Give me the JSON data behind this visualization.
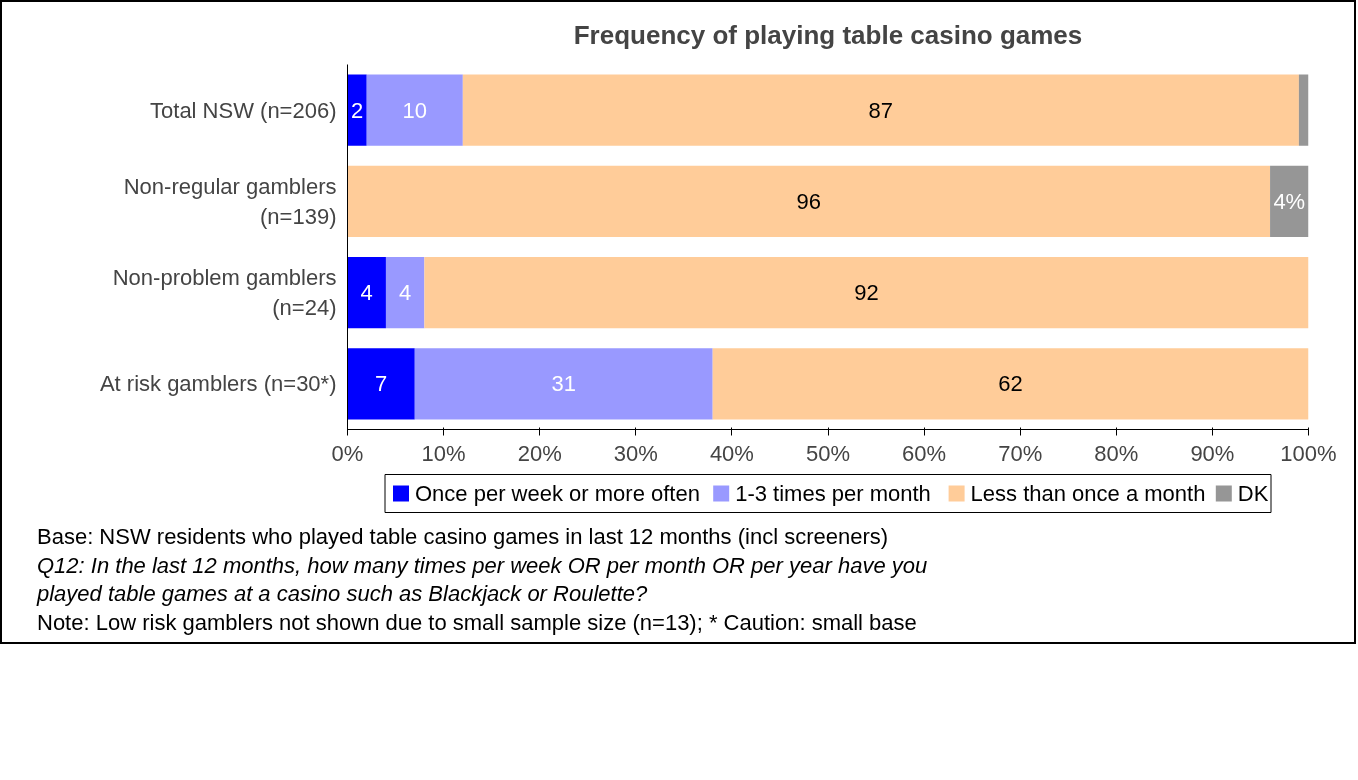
{
  "chart_data": {
    "type": "bar",
    "orientation": "horizontal",
    "stacked": true,
    "title": "Frequency of playing table casino games",
    "categories": [
      "Total NSW (n=206)",
      "Non-regular gamblers (n=139)",
      "Non-problem gamblers (n=24)",
      "At risk gamblers (n=30*)"
    ],
    "series": [
      {
        "name": "Once per week or more often",
        "color": "#0000ff",
        "values": [
          2,
          0,
          4,
          7
        ],
        "value_labels": [
          "2",
          null,
          "4",
          "7"
        ]
      },
      {
        "name": "1-3 times per month",
        "color": "#9999ff",
        "values": [
          10,
          0,
          4,
          31
        ],
        "value_labels": [
          "10",
          null,
          "4",
          "31"
        ]
      },
      {
        "name": "Less than once a month",
        "color": "#ffcc99",
        "values": [
          87,
          96,
          92,
          62
        ],
        "value_labels": [
          "87",
          "96",
          "92",
          "62"
        ]
      },
      {
        "name": "DK",
        "color": "#969696",
        "values": [
          1,
          4,
          0,
          0
        ],
        "value_labels": [
          null,
          "4%",
          null,
          null
        ]
      }
    ],
    "xlim": [
      0,
      100
    ],
    "xticks": [
      {
        "value": 0,
        "label": "0%"
      },
      {
        "value": 10,
        "label": "10%"
      },
      {
        "value": 20,
        "label": "20%"
      },
      {
        "value": 30,
        "label": "30%"
      },
      {
        "value": 40,
        "label": "40%"
      },
      {
        "value": 50,
        "label": "50%"
      },
      {
        "value": 60,
        "label": "60%"
      },
      {
        "value": 70,
        "label": "70%"
      },
      {
        "value": 80,
        "label": "80%"
      },
      {
        "value": 90,
        "label": "90%"
      },
      {
        "value": 100,
        "label": "100%"
      }
    ],
    "grid": false,
    "legend": "bottom",
    "annotations": [
      "Base: NSW residents who played table casino games in last 12 months (incl screeners)",
      "Q12: In the last 12 months, how many times per week OR per month OR per year have you",
      "played table games at a casino such as Blackjack or Roulette?",
      "Note: Low risk gamblers not shown due to small sample size (n=13);  * Caution: small base"
    ]
  }
}
